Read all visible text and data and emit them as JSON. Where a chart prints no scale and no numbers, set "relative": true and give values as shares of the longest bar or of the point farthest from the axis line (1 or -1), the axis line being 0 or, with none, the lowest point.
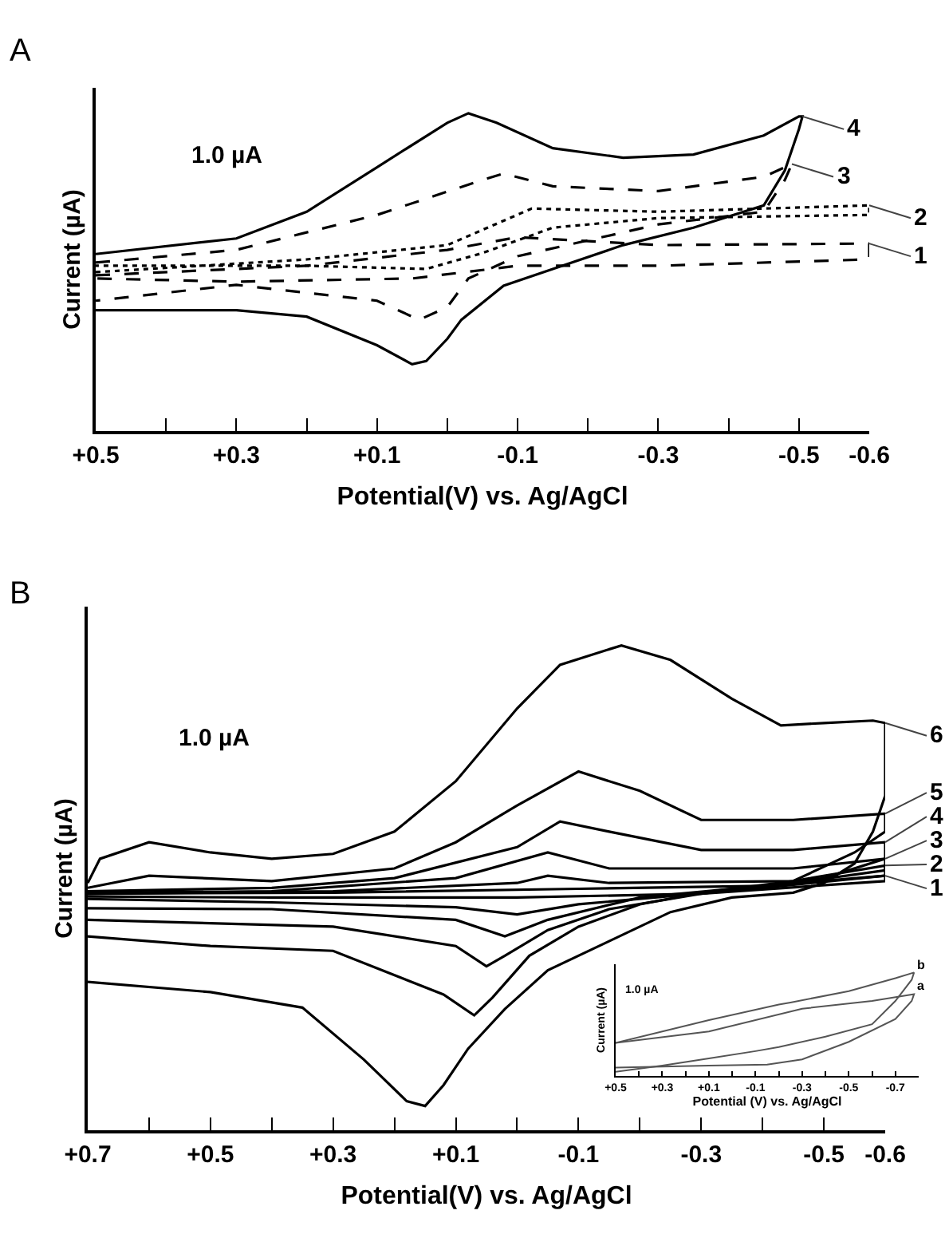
{
  "chart_data": [
    {
      "type": "line",
      "title": "A",
      "xlabel": "Potential(V) vs. Ag/AgCl",
      "ylabel": "Current (µA)",
      "relative": true,
      "legend": false,
      "grid": false,
      "annotations": [
        "1.0 µA"
      ],
      "xlim": [
        0.5,
        -0.6
      ],
      "xticks": [
        {
          "value": 0.5,
          "label": "+0.5"
        },
        {
          "value": 0.4,
          "label": null
        },
        {
          "value": 0.3,
          "label": "+0.3"
        },
        {
          "value": 0.2,
          "label": null
        },
        {
          "value": 0.1,
          "label": "+0.1"
        },
        {
          "value": 0.0,
          "label": null
        },
        -0.1,
        {
          "value": -0.2,
          "label": null
        },
        -0.3,
        {
          "value": -0.4,
          "label": null
        },
        -0.5,
        -0.6
      ],
      "series": [
        {
          "name": "1",
          "color": "#000000",
          "line_style": "dashed",
          "x": [
            0.5,
            0.2,
            0.0,
            -0.1,
            -0.3,
            -0.6,
            -0.6,
            -0.3,
            -0.1,
            0.05,
            0.3,
            0.5
          ],
          "values": [
            0.49,
            0.52,
            0.57,
            0.61,
            0.585,
            0.59,
            0.54,
            0.52,
            0.52,
            0.48,
            0.47,
            0.48
          ]
        },
        {
          "name": "2",
          "color": "#000000",
          "line_style": "dotted",
          "x": [
            0.5,
            0.2,
            0.0,
            -0.12,
            -0.3,
            -0.6,
            -0.6,
            -0.3,
            -0.15,
            -0.05,
            0.03,
            0.2,
            0.5
          ],
          "values": [
            0.5,
            0.54,
            0.585,
            0.7,
            0.69,
            0.71,
            0.68,
            0.67,
            0.64,
            0.56,
            0.51,
            0.52,
            0.52
          ]
        },
        {
          "name": "3",
          "color": "#000000",
          "line_style": "dashed",
          "x": [
            0.5,
            0.3,
            0.1,
            -0.05,
            -0.08,
            -0.15,
            -0.3,
            -0.45,
            -0.49,
            -0.48,
            -0.45,
            -0.3,
            -0.2,
            -0.1,
            -0.03,
            0.0,
            0.04,
            0.1,
            0.3,
            0.5
          ],
          "values": [
            0.53,
            0.57,
            0.68,
            0.79,
            0.81,
            0.77,
            0.755,
            0.8,
            0.84,
            0.79,
            0.69,
            0.65,
            0.6,
            0.55,
            0.48,
            0.39,
            0.35,
            0.41,
            0.46,
            0.41
          ]
        },
        {
          "name": "4",
          "color": "#000000",
          "line_style": "solid",
          "x": [
            0.5,
            0.3,
            0.2,
            0.1,
            0.0,
            -0.03,
            -0.07,
            -0.15,
            -0.25,
            -0.35,
            -0.45,
            -0.5,
            -0.505,
            -0.5,
            -0.48,
            -0.45,
            -0.35,
            -0.25,
            -0.15,
            -0.08,
            -0.02,
            0.0,
            0.03,
            0.05,
            0.1,
            0.2,
            0.3,
            0.5
          ],
          "values": [
            0.557,
            0.606,
            0.69,
            0.83,
            0.97,
            1.0,
            0.97,
            0.89,
            0.86,
            0.87,
            0.93,
            0.99,
            0.99,
            0.95,
            0.82,
            0.71,
            0.64,
            0.585,
            0.51,
            0.457,
            0.35,
            0.29,
            0.22,
            0.21,
            0.27,
            0.36,
            0.38,
            0.38
          ]
        }
      ]
    },
    {
      "type": "line",
      "title": "B",
      "xlabel": "Potential(V) vs. Ag/AgCl",
      "ylabel": "Current (µA)",
      "relative": true,
      "legend": false,
      "grid": false,
      "annotations": [
        "1.0 µA"
      ],
      "xlim": [
        0.7,
        -0.6
      ],
      "xticks": [
        {
          "value": 0.7,
          "label": "+0.7"
        },
        {
          "value": 0.6,
          "label": null
        },
        {
          "value": 0.5,
          "label": "+0.5"
        },
        {
          "value": 0.4,
          "label": null
        },
        {
          "value": 0.3,
          "label": "+0.3"
        },
        {
          "value": 0.2,
          "label": null
        },
        {
          "value": 0.1,
          "label": "+0.1"
        },
        {
          "value": 0.0,
          "label": null
        },
        -0.1,
        {
          "value": -0.2,
          "label": null
        },
        -0.3,
        {
          "value": -0.4,
          "label": null
        },
        -0.5,
        -0.6
      ],
      "series": [
        {
          "name": "1",
          "color": "#000000",
          "line_style": "solid",
          "x": [
            0.7,
            0.3,
            -0.1,
            -0.4,
            -0.6,
            -0.6,
            -0.3,
            0.0,
            0.4,
            0.7
          ],
          "values": [
            0.488,
            0.49,
            0.498,
            0.504,
            0.525,
            0.514,
            0.488,
            0.48,
            0.48,
            0.482
          ]
        },
        {
          "name": "2",
          "color": "#000000",
          "line_style": "solid",
          "x": [
            0.7,
            0.3,
            0.0,
            -0.05,
            -0.15,
            -0.45,
            -0.6,
            -0.6,
            -0.4,
            -0.1,
            0.0,
            0.1,
            0.4,
            0.7
          ],
          "values": [
            0.488,
            0.493,
            0.51,
            0.525,
            0.51,
            0.514,
            0.546,
            0.525,
            0.5,
            0.466,
            0.445,
            0.46,
            0.47,
            0.477
          ]
        },
        {
          "name": "3",
          "color": "#000000",
          "line_style": "solid",
          "x": [
            0.7,
            0.4,
            0.1,
            -0.05,
            -0.15,
            -0.45,
            -0.6,
            -0.6,
            -0.45,
            -0.2,
            -0.05,
            0.02,
            0.1,
            0.4,
            0.7
          ],
          "values": [
            0.49,
            0.493,
            0.52,
            0.573,
            0.54,
            0.54,
            0.56,
            0.536,
            0.51,
            0.48,
            0.434,
            0.4,
            0.434,
            0.456,
            0.458
          ]
        },
        {
          "name": "4",
          "color": "#000000",
          "line_style": "solid",
          "x": [
            0.7,
            0.4,
            0.2,
            0.0,
            -0.07,
            -0.15,
            -0.3,
            -0.45,
            -0.6,
            -0.6,
            -0.5,
            -0.3,
            -0.15,
            -0.05,
            0.02,
            0.05,
            0.1,
            0.3,
            0.7
          ],
          "values": [
            0.493,
            0.5,
            0.52,
            0.584,
            0.637,
            0.616,
            0.578,
            0.578,
            0.594,
            0.56,
            0.52,
            0.488,
            0.456,
            0.413,
            0.36,
            0.338,
            0.38,
            0.42,
            0.434
          ]
        },
        {
          "name": "5",
          "color": "#000000",
          "line_style": "solid",
          "x": [
            0.7,
            0.6,
            0.4,
            0.2,
            0.1,
            0.0,
            -0.1,
            -0.2,
            -0.3,
            -0.45,
            -0.6,
            -0.6,
            -0.55,
            -0.45,
            -0.3,
            -0.2,
            -0.1,
            -0.02,
            0.04,
            0.07,
            0.12,
            0.3,
            0.5,
            0.7
          ],
          "values": [
            0.5,
            0.525,
            0.514,
            0.54,
            0.594,
            0.67,
            0.74,
            0.7,
            0.64,
            0.64,
            0.653,
            0.616,
            0.573,
            0.514,
            0.49,
            0.466,
            0.42,
            0.36,
            0.274,
            0.237,
            0.28,
            0.37,
            0.38,
            0.4
          ]
        },
        {
          "name": "6",
          "color": "#000000",
          "line_style": "solid",
          "x": [
            0.7,
            0.68,
            0.6,
            0.5,
            0.4,
            0.3,
            0.2,
            0.1,
            0.0,
            -0.07,
            -0.17,
            -0.25,
            -0.35,
            -0.43,
            -0.5,
            -0.58,
            -0.6,
            -0.6,
            -0.58,
            -0.55,
            -0.5,
            -0.45,
            -0.35,
            -0.25,
            -0.15,
            -0.05,
            0.02,
            0.08,
            0.12,
            0.15,
            0.18,
            0.25,
            0.35,
            0.5,
            0.7
          ],
          "values": [
            0.51,
            0.56,
            0.594,
            0.573,
            0.56,
            0.57,
            0.616,
            0.72,
            0.87,
            0.96,
            1.0,
            0.97,
            0.89,
            0.835,
            0.84,
            0.845,
            0.84,
            0.69,
            0.616,
            0.55,
            0.51,
            0.49,
            0.48,
            0.45,
            0.39,
            0.33,
            0.25,
            0.168,
            0.093,
            0.05,
            0.06,
            0.146,
            0.253,
            0.285,
            0.306
          ]
        }
      ]
    },
    {
      "type": "line",
      "xlabel": "Potential (V) vs. Ag/AgCl",
      "ylabel": "Current (µA)",
      "relative": true,
      "legend": false,
      "grid": false,
      "annotations": [
        "1.0 µA"
      ],
      "xlim": [
        0.5,
        -0.8
      ],
      "xticks": [
        {
          "value": 0.5,
          "label": "+0.5"
        },
        {
          "value": 0.4,
          "label": null
        },
        {
          "value": 0.3,
          "label": "+0.3"
        },
        {
          "value": 0.2,
          "label": null
        },
        {
          "value": 0.1,
          "label": "+0.1"
        },
        {
          "value": 0.0,
          "label": null
        },
        -0.1,
        {
          "value": -0.2,
          "label": null
        },
        -0.3,
        {
          "value": -0.4,
          "label": null
        },
        -0.5,
        {
          "value": -0.6,
          "label": null
        },
        -0.7
      ],
      "series": [
        {
          "name": "a",
          "color": "#555555",
          "line_style": "solid",
          "x": [
            0.5,
            0.1,
            -0.3,
            -0.6,
            -0.78,
            -0.77,
            -0.7,
            -0.5,
            -0.3,
            -0.15,
            0.1,
            0.5
          ],
          "values": [
            0.32,
            0.43,
            0.65,
            0.725,
            0.79,
            0.725,
            0.55,
            0.33,
            0.16,
            0.11,
            0.1,
            0.08
          ]
        },
        {
          "name": "b",
          "color": "#555555",
          "line_style": "solid",
          "x": [
            0.5,
            0.1,
            -0.2,
            -0.25,
            -0.5,
            -0.7,
            -0.78,
            -0.77,
            -0.7,
            -0.6,
            -0.4,
            -0.2,
            -0.1,
            0.1,
            0.3,
            0.5
          ],
          "values": [
            0.32,
            0.54,
            0.69,
            0.71,
            0.82,
            0.945,
            1.0,
            0.93,
            0.725,
            0.5,
            0.38,
            0.28,
            0.24,
            0.17,
            0.1,
            0.04
          ]
        }
      ]
    }
  ]
}
